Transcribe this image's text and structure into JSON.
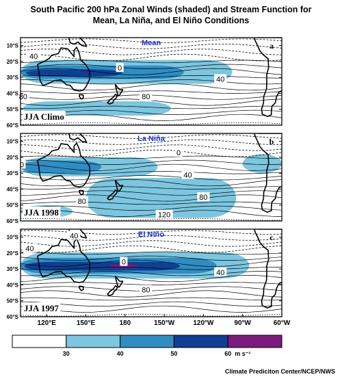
{
  "title_line1": "South Pacific 200 hPa Zonal Winds (shaded) and Stream Function for",
  "title_line2": "Mean, La Niña, and El Niño Conditions",
  "latitude_labels": [
    "10°S",
    "20°S",
    "30°S",
    "40°S",
    "50°S",
    "60°S"
  ],
  "longitude_labels": [
    "120°E",
    "150°E",
    "180",
    "150°W",
    "120°W",
    "90°W",
    "60°W"
  ],
  "panels": [
    {
      "id": "a",
      "title": "Mean",
      "season": "JJA Climo",
      "contour_labels": [
        {
          "text": "40",
          "lon": 110,
          "lat": -16.5
        },
        {
          "text": "0",
          "lon": 176,
          "lat": -24
        },
        {
          "text": "40",
          "lon": 253,
          "lat": -31
        },
        {
          "text": "80",
          "lon": 196,
          "lat": -42
        },
        {
          "text": "80",
          "lon": 102,
          "lat": -42
        }
      ]
    },
    {
      "id": "b",
      "title": "La Niña",
      "season": "JJA 1998",
      "contour_labels": [
        {
          "text": "0",
          "lon": 101,
          "lat": -24.5
        },
        {
          "text": "0",
          "lon": 221,
          "lat": -17
        },
        {
          "text": "40",
          "lon": 228,
          "lat": -31
        },
        {
          "text": "80",
          "lon": 147,
          "lat": -47.5
        },
        {
          "text": "80",
          "lon": 240,
          "lat": -45
        },
        {
          "text": "120",
          "lon": 210,
          "lat": -56
        }
      ]
    },
    {
      "id": "c",
      "title": "El Niño",
      "season": "JJA 1997",
      "contour_labels": [
        {
          "text": "40",
          "lon": 141,
          "lat": -9
        },
        {
          "text": "40",
          "lon": 107,
          "lat": -17
        },
        {
          "text": "0",
          "lon": 179,
          "lat": -25.5
        },
        {
          "text": "40",
          "lon": 253,
          "lat": -32
        },
        {
          "text": "80",
          "lon": 196,
          "lat": -43
        }
      ]
    }
  ],
  "colorbar": {
    "levels": [
      "30",
      "40",
      "50",
      "60"
    ],
    "units": "m s⁻¹",
    "colors": [
      "#ffffff",
      "#7cc6e0",
      "#2f8dc4",
      "#0e3f93",
      "#7b1a7c"
    ]
  },
  "wind_colors": {
    "c30": "#7cc6e0",
    "c40": "#2f8dc4",
    "c50": "#0e3f93",
    "c60": "#7b1a7c"
  },
  "credit": "Climate Prediciton Center/NCEP/NWS"
}
